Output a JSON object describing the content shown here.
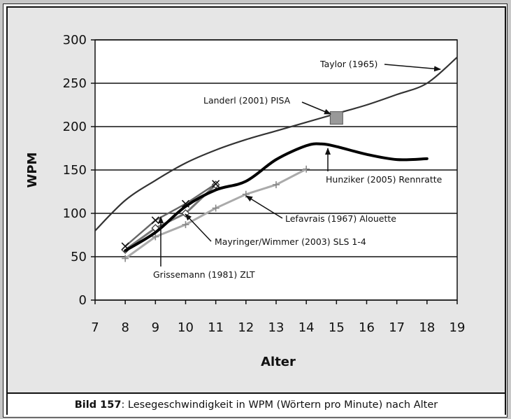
{
  "caption": {
    "prefix": "Bild 157",
    "text": ": Lesegeschwindigkeit in WPM (Wörtern pro Minute) nach Alter"
  },
  "chart_data": {
    "type": "line",
    "xlabel": "Alter",
    "ylabel": "WPM",
    "xlim": [
      7,
      19
    ],
    "ylim": [
      0,
      300
    ],
    "xticks": [
      7,
      8,
      9,
      10,
      11,
      12,
      13,
      14,
      15,
      16,
      17,
      18,
      19
    ],
    "yticks": [
      0,
      50,
      100,
      150,
      200,
      250,
      300
    ],
    "grid": "horizontal",
    "colors": {
      "taylor": "#333333",
      "hunziker": "#000000",
      "lefavrais": "#aaaaaa",
      "mayringer": "#777777",
      "grissemann": "#111111",
      "landerl_fill": "#999999",
      "plot_bg": "#ffffff",
      "panel_bg": "#e6e6e6"
    },
    "series": [
      {
        "name": "Taylor (1965)",
        "x": [
          7,
          8,
          9,
          10,
          11,
          12,
          13,
          14,
          15,
          16,
          17,
          18,
          19
        ],
        "y": [
          80,
          115,
          138,
          158,
          173,
          185,
          195,
          205,
          215,
          225,
          237,
          250,
          280
        ]
      },
      {
        "name": "Hunziker (2005) Rennratte",
        "x": [
          8,
          9,
          10,
          11,
          12,
          13,
          14,
          14.5,
          15,
          16,
          17,
          18
        ],
        "y": [
          57,
          78,
          108,
          127,
          137,
          162,
          178,
          180,
          177,
          168,
          162,
          163
        ]
      },
      {
        "name": "Lefavrais (1967) Alouette",
        "marker": "+",
        "x": [
          8,
          9,
          10,
          11,
          12,
          13,
          14
        ],
        "y": [
          48,
          73,
          87,
          106,
          122,
          133,
          151
        ]
      },
      {
        "name": "Mayringer/Wimmer (2003) SLS 1-4",
        "marker": "diamond",
        "x": [
          8,
          9,
          10,
          11
        ],
        "y": [
          58,
          83,
          100,
          133
        ]
      },
      {
        "name": "Grissemann (1981) ZLT",
        "marker": "x",
        "x": [
          8,
          9,
          10,
          11
        ],
        "y": [
          62,
          92,
          111,
          134
        ]
      },
      {
        "name": "Landerl (2001) PISA",
        "marker": "square",
        "x": [
          15
        ],
        "y": [
          210
        ]
      }
    ],
    "annotations": [
      {
        "text": "Taylor (1965)"
      },
      {
        "text": "Landerl (2001) PISA"
      },
      {
        "text": "Hunziker (2005) Rennratte"
      },
      {
        "text": "Lefavrais (1967) Alouette"
      },
      {
        "text": "Mayringer/Wimmer (2003) SLS 1-4"
      },
      {
        "text": "Grissemann (1981) ZLT"
      }
    ]
  }
}
